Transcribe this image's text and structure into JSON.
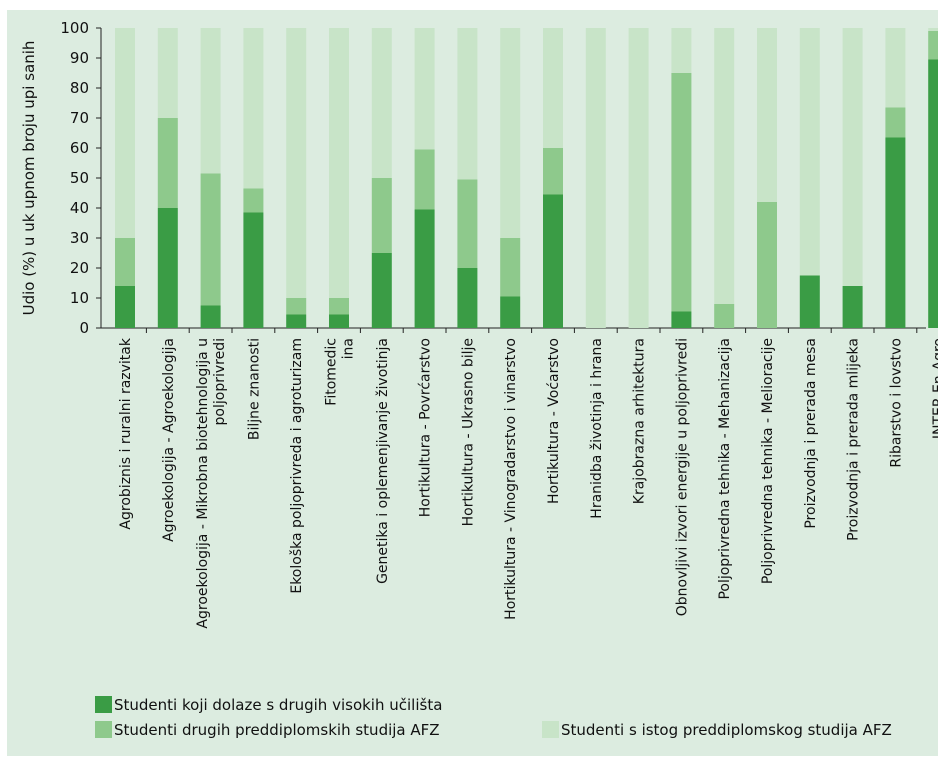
{
  "chart_data": {
    "type": "bar",
    "stacked": true,
    "ylabel": "Udio (%) u uk upnom broju upi sanih",
    "ylim": [
      0,
      100
    ],
    "yticks": [
      0,
      10,
      20,
      30,
      40,
      50,
      60,
      70,
      80,
      90,
      100
    ],
    "categories": [
      [
        "Agrobiznis i ruralni razvitak"
      ],
      [
        "Agroekologija - Agroekologija"
      ],
      [
        "Agroekologija - Mikrobna biotehnologija u",
        "poljoprivredi"
      ],
      [
        "Biljne znanosti"
      ],
      [
        "Ekološka poljoprivreda i agroturizam"
      ],
      [
        "Fitomedic",
        "ina"
      ],
      [
        "Genetika i oplemenjivanje životinja"
      ],
      [
        "Hortikultura - Povrćarstvo"
      ],
      [
        "Hortikultura - Ukrasno bilje"
      ],
      [
        "Hortikultura - Vinogradarstvo i vinarstvo"
      ],
      [
        "Hortikultura - Voćarstvo"
      ],
      [
        "Hranidba životinja i hrana"
      ],
      [
        "Krajobrazna arhitektura"
      ],
      [
        "Obnovljivi izvori energije u poljoprivredi"
      ],
      [
        "Poljoprivredna tehnika - Mehanizacija"
      ],
      [
        "Poljoprivredna tehnika - Melioracije"
      ],
      [
        "Proizvodnja i prerada mesa"
      ],
      [
        "Proizvodnja i prerada mlijeka"
      ],
      [
        "Ribarstvo i lovstvo"
      ],
      [
        "INTER-En-Agro"
      ]
    ],
    "series": [
      {
        "name": "Studenti koji dolaze s drugih visokih učilišta",
        "color": "#3a9c45",
        "values": [
          14,
          40,
          7.5,
          38.5,
          4.5,
          4.5,
          25,
          39.5,
          20,
          10.5,
          44.5,
          0,
          0,
          5.5,
          0,
          0,
          17.5,
          14,
          63.5,
          89.5
        ]
      },
      {
        "name": "Studenti drugih preddiplomskih studija AFZ",
        "color": "#8ec98c",
        "values": [
          16,
          30,
          44,
          8,
          5.5,
          5.5,
          25,
          20,
          29.5,
          19.5,
          15.5,
          0,
          0,
          79.5,
          8,
          42,
          0,
          0,
          10,
          9.5
        ]
      },
      {
        "name": "Studenti s istog preddiplomskog studija AFZ",
        "color": "#c8e4c8",
        "values": [
          70,
          30,
          48.5,
          53.5,
          90,
          90,
          50,
          40.5,
          50.5,
          70,
          40,
          100,
          100,
          15,
          92,
          58,
          82.5,
          86,
          26.5,
          1
        ]
      }
    ],
    "grid": false,
    "legend": "bottom"
  }
}
